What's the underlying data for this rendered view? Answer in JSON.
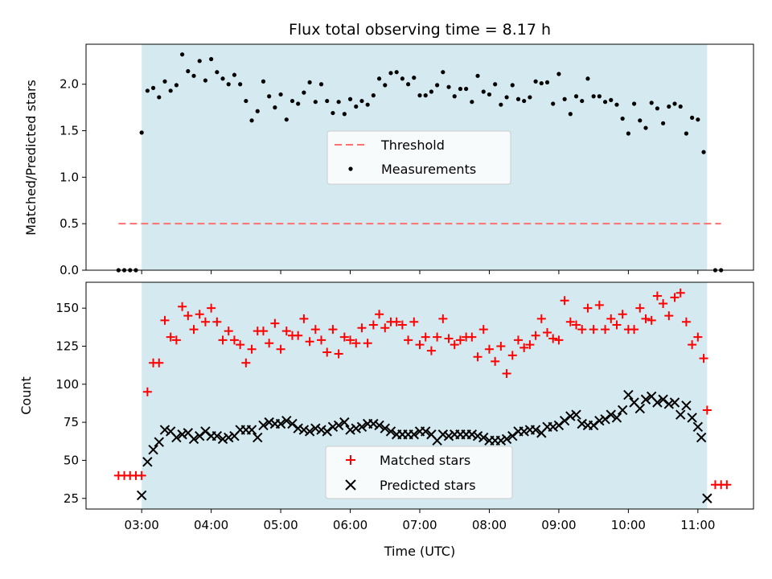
{
  "chart_data": [
    {
      "type": "scatter",
      "title": "Flux total observing time = 8.17 h",
      "xlabel": "",
      "ylabel": "Matched/Predicted stars",
      "ylim": [
        0,
        2.43
      ],
      "yticks": [
        0.0,
        0.5,
        1.0,
        1.5,
        2.0
      ],
      "ytick_labels": [
        "0.0",
        "0.5",
        "1.0",
        "1.5",
        "2.0"
      ],
      "grid": false,
      "legend": "center",
      "shaded_interval": {
        "from": "03:00",
        "to": "11:08",
        "color": "#d4eaf0"
      },
      "threshold": {
        "name": "Threshold",
        "y": 0.5,
        "from": "02:40",
        "to": "11:20",
        "color": "#ff7070"
      },
      "series": [
        {
          "name": "Measurements",
          "color": "#000000",
          "marker": "dot",
          "x": [
            "02:40",
            "02:45",
            "02:50",
            "02:55",
            "03:00",
            "03:05",
            "03:10",
            "03:15",
            "03:20",
            "03:25",
            "03:30",
            "03:35",
            "03:40",
            "03:45",
            "03:50",
            "03:55",
            "04:00",
            "04:05",
            "04:10",
            "04:15",
            "04:20",
            "04:25",
            "04:30",
            "04:35",
            "04:40",
            "04:45",
            "04:50",
            "04:55",
            "05:00",
            "05:05",
            "05:10",
            "05:15",
            "05:20",
            "05:25",
            "05:30",
            "05:35",
            "05:40",
            "05:45",
            "05:50",
            "05:55",
            "06:00",
            "06:05",
            "06:10",
            "06:15",
            "06:20",
            "06:25",
            "06:30",
            "06:35",
            "06:40",
            "06:45",
            "06:50",
            "06:55",
            "07:00",
            "07:05",
            "07:10",
            "07:15",
            "07:20",
            "07:25",
            "07:30",
            "07:35",
            "07:40",
            "07:45",
            "07:50",
            "07:55",
            "08:00",
            "08:05",
            "08:10",
            "08:15",
            "08:20",
            "08:25",
            "08:30",
            "08:35",
            "08:40",
            "08:45",
            "08:50",
            "08:55",
            "09:00",
            "09:05",
            "09:10",
            "09:15",
            "09:20",
            "09:25",
            "09:30",
            "09:35",
            "09:40",
            "09:45",
            "09:50",
            "09:55",
            "10:00",
            "10:05",
            "10:10",
            "10:15",
            "10:20",
            "10:25",
            "10:30",
            "10:35",
            "10:40",
            "10:45",
            "10:50",
            "10:55",
            "11:00",
            "11:05",
            "11:15",
            "11:20"
          ],
          "y": [
            0,
            0,
            0,
            0,
            1.48,
            1.93,
            1.96,
            1.86,
            2.03,
            1.93,
            1.99,
            2.32,
            2.14,
            2.09,
            2.25,
            2.04,
            2.27,
            2.13,
            2.06,
            2.0,
            2.1,
            2.0,
            1.82,
            1.61,
            1.71,
            2.03,
            1.87,
            1.75,
            1.89,
            1.62,
            1.82,
            1.79,
            1.91,
            2.02,
            1.81,
            2.0,
            1.82,
            1.69,
            1.81,
            1.68,
            1.84,
            1.76,
            1.82,
            1.78,
            1.88,
            2.06,
            1.99,
            2.12,
            2.13,
            2.06,
            2.0,
            2.07,
            1.88,
            1.88,
            1.92,
            1.99,
            2.13,
            1.97,
            1.87,
            1.95,
            1.95,
            1.81,
            2.09,
            1.92,
            1.89,
            2.0,
            1.78,
            1.86,
            1.99,
            1.84,
            1.82,
            1.86,
            2.03,
            2.01,
            2.02,
            1.79,
            2.11,
            1.84,
            1.68,
            1.87,
            1.82,
            2.06,
            1.87,
            1.87,
            1.81,
            1.83,
            1.78,
            1.63,
            1.47,
            1.79,
            1.61,
            1.53,
            1.8,
            1.74,
            1.58,
            1.76,
            1.79,
            1.76,
            1.47,
            1.64,
            1.62,
            1.27,
            0,
            0
          ]
        }
      ]
    },
    {
      "type": "scatter",
      "title": "",
      "xlabel": "Time (UTC)",
      "ylabel": "Count",
      "ylim": [
        18,
        167
      ],
      "yticks": [
        25,
        50,
        75,
        100,
        125,
        150
      ],
      "ytick_labels": [
        "25",
        "50",
        "75",
        "100",
        "125",
        "150"
      ],
      "xlim": [
        "02:12",
        "11:48"
      ],
      "xticks": [
        "03:00",
        "04:00",
        "05:00",
        "06:00",
        "07:00",
        "08:00",
        "09:00",
        "10:00",
        "11:00"
      ],
      "xtick_labels": [
        "03:00",
        "04:00",
        "05:00",
        "06:00",
        "07:00",
        "08:00",
        "09:00",
        "10:00",
        "11:00"
      ],
      "grid": false,
      "legend": "bottom-center",
      "shaded_interval": {
        "from": "03:00",
        "to": "11:08",
        "color": "#d4eaf0"
      },
      "series": [
        {
          "name": "Matched stars",
          "color": "#ff0000",
          "marker": "plus",
          "x": [
            "02:40",
            "02:45",
            "02:50",
            "02:55",
            "03:00",
            "03:05",
            "03:10",
            "03:15",
            "03:20",
            "03:25",
            "03:30",
            "03:35",
            "03:40",
            "03:45",
            "03:50",
            "03:55",
            "04:00",
            "04:05",
            "04:10",
            "04:15",
            "04:20",
            "04:25",
            "04:30",
            "04:35",
            "04:40",
            "04:45",
            "04:50",
            "04:55",
            "05:00",
            "05:05",
            "05:10",
            "05:15",
            "05:20",
            "05:25",
            "05:30",
            "05:35",
            "05:40",
            "05:45",
            "05:50",
            "05:55",
            "06:00",
            "06:05",
            "06:10",
            "06:15",
            "06:20",
            "06:25",
            "06:30",
            "06:35",
            "06:40",
            "06:45",
            "06:50",
            "06:55",
            "07:00",
            "07:05",
            "07:10",
            "07:15",
            "07:20",
            "07:25",
            "07:30",
            "07:35",
            "07:40",
            "07:45",
            "07:50",
            "07:55",
            "08:00",
            "08:05",
            "08:10",
            "08:15",
            "08:20",
            "08:25",
            "08:30",
            "08:35",
            "08:40",
            "08:45",
            "08:50",
            "08:55",
            "09:00",
            "09:05",
            "09:10",
            "09:15",
            "09:20",
            "09:25",
            "09:30",
            "09:35",
            "09:40",
            "09:45",
            "09:50",
            "09:55",
            "10:00",
            "10:05",
            "10:10",
            "10:15",
            "10:20",
            "10:25",
            "10:30",
            "10:35",
            "10:40",
            "10:45",
            "10:50",
            "10:55",
            "11:00",
            "11:05",
            "11:08",
            "11:15",
            "11:20",
            "11:25"
          ],
          "y": [
            40,
            40,
            40,
            40,
            40,
            95,
            114,
            114,
            142,
            131,
            129,
            151,
            145,
            136,
            146,
            141,
            150,
            141,
            129,
            135,
            129,
            126,
            114,
            123,
            135,
            135,
            127,
            140,
            123,
            135,
            132,
            132,
            143,
            128,
            136,
            129,
            121,
            136,
            120,
            131,
            129,
            127,
            137,
            127,
            139,
            146,
            137,
            141,
            141,
            139,
            129,
            141,
            126,
            131,
            122,
            131,
            143,
            130,
            126,
            129,
            131,
            131,
            118,
            136,
            123,
            115,
            125,
            107,
            119,
            129,
            124,
            126,
            132,
            143,
            134,
            130,
            129,
            155,
            141,
            139,
            136,
            150,
            136,
            152,
            136,
            143,
            139,
            146,
            136,
            136,
            150,
            143,
            142,
            158,
            153,
            145,
            157,
            160,
            141,
            126,
            131,
            117,
            83,
            34,
            34,
            34
          ]
        },
        {
          "name": "Predicted stars",
          "color": "#000000",
          "marker": "x",
          "x": [
            "03:00",
            "03:05",
            "03:10",
            "03:15",
            "03:20",
            "03:25",
            "03:30",
            "03:35",
            "03:40",
            "03:45",
            "03:50",
            "03:55",
            "04:00",
            "04:05",
            "04:10",
            "04:15",
            "04:20",
            "04:25",
            "04:30",
            "04:35",
            "04:40",
            "04:45",
            "04:50",
            "04:55",
            "05:00",
            "05:05",
            "05:10",
            "05:15",
            "05:20",
            "05:25",
            "05:30",
            "05:35",
            "05:40",
            "05:45",
            "05:50",
            "05:55",
            "06:00",
            "06:05",
            "06:10",
            "06:15",
            "06:20",
            "06:25",
            "06:30",
            "06:35",
            "06:40",
            "06:45",
            "06:50",
            "06:55",
            "07:00",
            "07:05",
            "07:10",
            "07:15",
            "07:20",
            "07:25",
            "07:30",
            "07:35",
            "07:40",
            "07:45",
            "07:50",
            "07:55",
            "08:00",
            "08:05",
            "08:10",
            "08:15",
            "08:20",
            "08:25",
            "08:30",
            "08:35",
            "08:40",
            "08:45",
            "08:50",
            "08:55",
            "09:00",
            "09:05",
            "09:10",
            "09:15",
            "09:20",
            "09:25",
            "09:30",
            "09:35",
            "09:40",
            "09:45",
            "09:50",
            "09:55",
            "10:00",
            "10:05",
            "10:10",
            "10:15",
            "10:20",
            "10:25",
            "10:30",
            "10:35",
            "10:40",
            "10:45",
            "10:50",
            "10:55",
            "11:00",
            "11:03",
            "11:08"
          ],
          "y": [
            27,
            49,
            57,
            62,
            70,
            69,
            65,
            67,
            68,
            64,
            66,
            69,
            66,
            66,
            64,
            65,
            66,
            70,
            70,
            70,
            65,
            73,
            75,
            74,
            74,
            76,
            74,
            71,
            70,
            69,
            71,
            70,
            69,
            72,
            73,
            75,
            70,
            71,
            72,
            74,
            74,
            73,
            71,
            69,
            67,
            67,
            67,
            67,
            69,
            69,
            67,
            63,
            67,
            66,
            67,
            67,
            67,
            67,
            66,
            65,
            63,
            63,
            63,
            64,
            66,
            69,
            69,
            70,
            70,
            68,
            72,
            72,
            73,
            76,
            79,
            80,
            74,
            73,
            73,
            76,
            77,
            80,
            78,
            83,
            93,
            88,
            84,
            90,
            92,
            88,
            90,
            87,
            88,
            80,
            86,
            78,
            72,
            65,
            25
          ]
        }
      ]
    }
  ]
}
